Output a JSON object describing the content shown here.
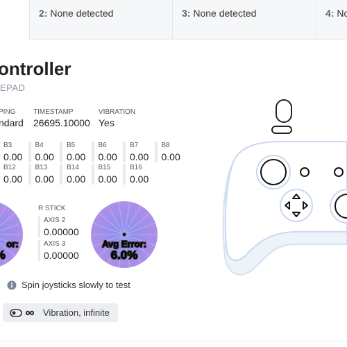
{
  "tabs": [
    {
      "number": "2:",
      "label": "None detected"
    },
    {
      "number": "3:",
      "label": "None detected"
    },
    {
      "number": "4:",
      "label": "No"
    }
  ],
  "title": "ontroller",
  "subtitle": "EPAD",
  "info": [
    {
      "label": "PING",
      "value": "ndard"
    },
    {
      "label": "TIMESTAMP",
      "value": "26695.10000"
    },
    {
      "label": "VIBRATION",
      "value": "Yes"
    }
  ],
  "buttons": [
    [
      {
        "label": "B3",
        "value": "0.00"
      },
      {
        "label": "B4",
        "value": "0.00"
      },
      {
        "label": "B5",
        "value": "0.00"
      },
      {
        "label": "B6",
        "value": "0.00"
      },
      {
        "label": "B7",
        "value": "0.00"
      },
      {
        "label": "B8",
        "value": "0.00"
      }
    ],
    [
      {
        "label": "B12",
        "value": "0.00"
      },
      {
        "label": "B13",
        "value": "0.00"
      },
      {
        "label": "B14",
        "value": "0.00"
      },
      {
        "label": "B15",
        "value": "0.00"
      },
      {
        "label": "B16",
        "value": "0.00"
      }
    ]
  ],
  "left_stick": {
    "error_label": "or:",
    "error_value": "%"
  },
  "right_stick": {
    "title": "R STICK",
    "axes": [
      {
        "label": "AXIS 2",
        "value": "0.00000"
      },
      {
        "label": "AXIS 3",
        "value": "0.00000"
      }
    ],
    "error_label": "Avg Error:",
    "error_value": "6.0%"
  },
  "hint": "Spin joysticks slowly to test",
  "vibration_button": "Vibration, infinite"
}
